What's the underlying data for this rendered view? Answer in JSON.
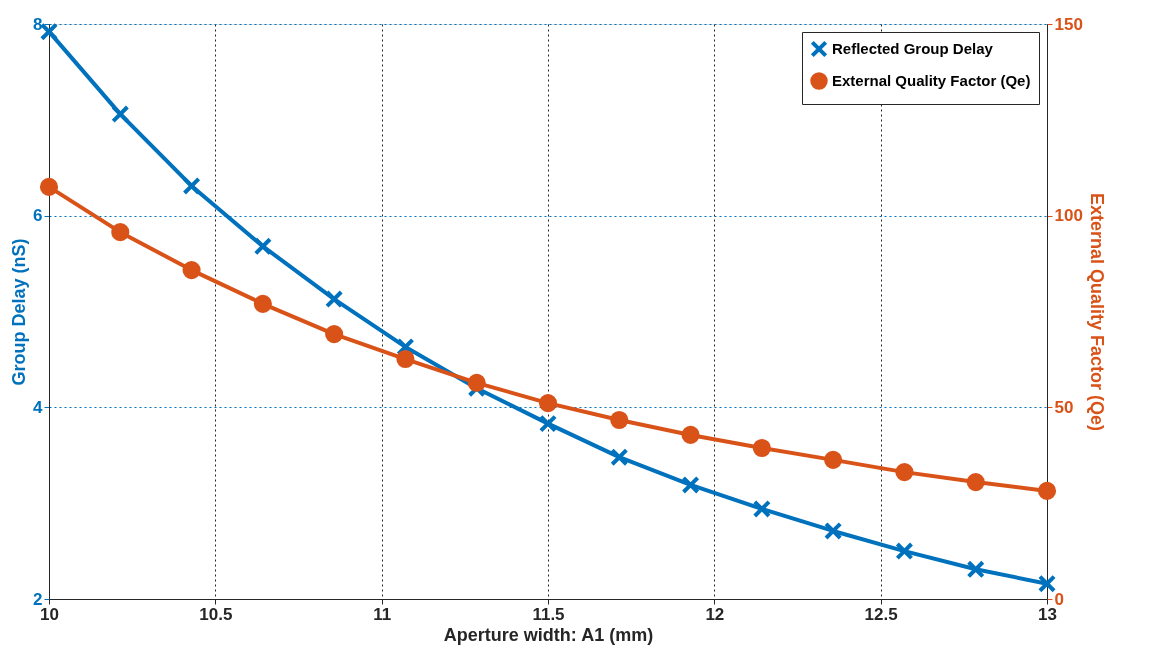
{
  "chart_data": {
    "type": "line",
    "xlabel": "Aperture width: A1 (mm)",
    "ylabel": "Group Delay (nS)",
    "y2label": "External Quality Factor (Qe)",
    "x": [
      10,
      10.2143,
      10.4286,
      10.6429,
      10.8571,
      11.0714,
      11.2857,
      11.5,
      11.7143,
      11.9286,
      12.1429,
      12.3571,
      12.5714,
      12.7857,
      13
    ],
    "series": [
      {
        "name": "Reflected Group Delay",
        "color": "#0072bd",
        "marker": "cross",
        "values": [
          7.92,
          7.06,
          6.31,
          5.68,
          5.13,
          4.63,
          4.2,
          3.83,
          3.48,
          3.19,
          2.94,
          2.71,
          2.5,
          2.31,
          2.16
        ]
      },
      {
        "name": "External Quality Factor (Qe)",
        "color": "#d95319",
        "marker": "circle",
        "axis": "y2",
        "values": [
          107.5,
          95.7,
          85.8,
          77.0,
          69.1,
          62.6,
          56.4,
          51.1,
          46.7,
          42.8,
          39.4,
          36.3,
          33.1,
          30.5,
          28.2
        ]
      }
    ],
    "xlim": [
      10,
      13
    ],
    "xticks": [
      10,
      10.5,
      11,
      11.5,
      12,
      12.5,
      13
    ],
    "ylim": [
      2,
      8
    ],
    "yticks": [
      2,
      4,
      6,
      8
    ],
    "y2lim": [
      0,
      150
    ],
    "y2ticks": [
      0,
      50,
      100,
      150
    ],
    "grid": true,
    "legend": "top right",
    "line_style": "solid"
  }
}
